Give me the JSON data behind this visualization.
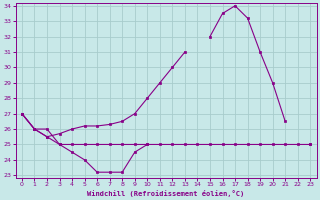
{
  "xlabel": "Windchill (Refroidissement éolien,°C)",
  "bg_color": "#c8e8e8",
  "grid_color": "#a8cccc",
  "line_color": "#880088",
  "x": [
    0,
    1,
    2,
    3,
    4,
    5,
    6,
    7,
    8,
    9,
    10,
    11,
    12,
    13,
    14,
    15,
    16,
    17,
    18,
    19,
    20,
    21,
    22,
    23
  ],
  "line_flat": [
    27,
    26,
    26,
    25,
    25,
    25,
    25,
    25,
    25,
    25,
    25,
    25,
    25,
    25,
    25,
    25,
    25,
    25,
    25,
    25,
    25,
    25,
    25,
    25
  ],
  "line_dip": [
    27,
    26,
    25.5,
    25,
    24.5,
    24,
    23.2,
    23.2,
    23.2,
    24.5,
    25,
    null,
    null,
    null,
    null,
    null,
    null,
    null,
    null,
    null,
    null,
    null,
    null,
    null
  ],
  "line_peak": [
    27,
    26,
    25.5,
    25.7,
    26,
    26.2,
    26.2,
    26.3,
    26.5,
    27,
    28,
    29,
    30,
    31,
    null,
    32,
    33.5,
    34,
    33.2,
    31,
    29,
    26.5,
    null,
    25
  ],
  "ylim": [
    23,
    34
  ],
  "xlim_min": -0.5,
  "xlim_max": 23.5,
  "yticks": [
    23,
    24,
    25,
    26,
    27,
    28,
    29,
    30,
    31,
    32,
    33,
    34
  ],
  "xticks": [
    0,
    1,
    2,
    3,
    4,
    5,
    6,
    7,
    8,
    9,
    10,
    11,
    12,
    13,
    14,
    15,
    16,
    17,
    18,
    19,
    20,
    21,
    22,
    23
  ]
}
